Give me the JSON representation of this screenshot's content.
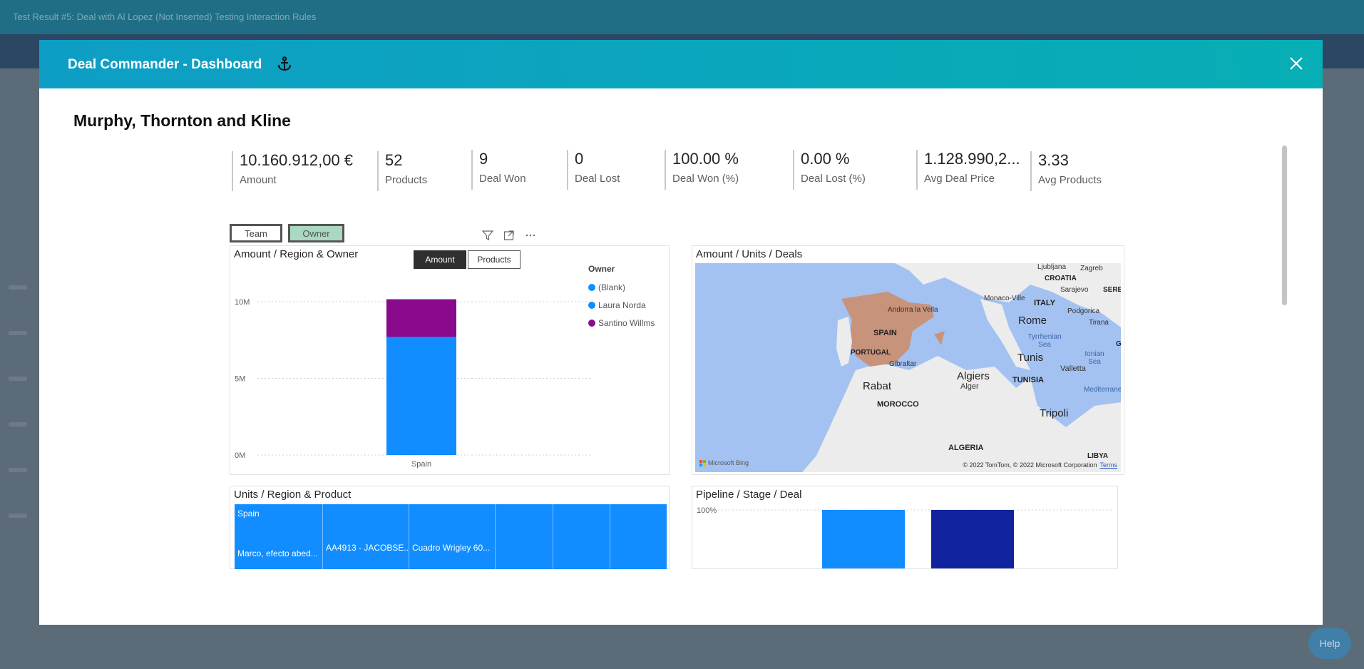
{
  "background": {
    "top_bar_text": "Test Result #5: Deal with Al Lopez (Not Inserted) Testing Interaction Rules",
    "help_label": "Help"
  },
  "modal": {
    "title": "Deal Commander - Dashboard",
    "company_name": "Murphy, Thornton and Kline"
  },
  "kpis": [
    {
      "value": "10.160.912,00 €",
      "label": "Amount"
    },
    {
      "value": "52",
      "label": "Products"
    },
    {
      "value": "9",
      "label": "Deal Won"
    },
    {
      "value": "0",
      "label": "Deal Lost"
    },
    {
      "value": "100.00 %",
      "label": "Deal Won (%)"
    },
    {
      "value": "0.00 %",
      "label": "Deal Lost (%)"
    },
    {
      "value": "1.128.990,2...",
      "label": "Avg Deal Price"
    },
    {
      "value": "3.33",
      "label": "Avg Products"
    }
  ],
  "toggles": {
    "team": "Team",
    "owner": "Owner",
    "active": "Owner"
  },
  "amount_chart": {
    "title": "Amount / Region & Owner",
    "seg_amount": "Amount",
    "seg_products": "Products",
    "legend_title": "Owner",
    "legend": [
      {
        "name": "(Blank)",
        "color": "#118dff"
      },
      {
        "name": "Laura Norda",
        "color": "#118dff"
      },
      {
        "name": "Santino Willms",
        "color": "#8a0a8e"
      }
    ],
    "y_ticks": [
      "10M",
      "5M",
      "0M"
    ],
    "x_category": "Spain"
  },
  "chart_data": [
    {
      "type": "bar",
      "title": "Amount / Region & Owner",
      "categories": [
        "Spain"
      ],
      "series": [
        {
          "name": "Laura Norda",
          "values": [
            7700000
          ]
        },
        {
          "name": "Santino Willms",
          "values": [
            2460000
          ]
        }
      ],
      "ylim": [
        0,
        10000000
      ],
      "legend": "right"
    },
    {
      "type": "bar",
      "title": "Pipeline / Stage / Deal",
      "categories": [
        "",
        ""
      ],
      "series": [
        {
          "name": "",
          "values": [
            100,
            100
          ]
        }
      ],
      "ylim": [
        0,
        100
      ]
    }
  ],
  "map_panel": {
    "title": "Amount / Units / Deals",
    "labels": {
      "spain": "SPAIN",
      "portugal": "PORTUGAL",
      "gibraltar": "Gibraltar",
      "andorra": "Andorra la Vella",
      "monaco": "Monaco-Ville",
      "italy": "ITALY",
      "rome": "Rome",
      "croatia": "CROATIA",
      "zagreb": "Zagreb",
      "ljubljana": "Ljubljana",
      "sarajevo": "Sarajevo",
      "serbia": "SERBI",
      "podgorica": "Podgorica",
      "tirana": "Tirana",
      "tyrrhenian": "Tyrrhenian Sea",
      "ionian": "Ionian Sea",
      "mediterranean": "Mediterranea",
      "rabat": "Rabat",
      "morocco": "MOROCCO",
      "algiers": "Algiers",
      "alger": "Alger",
      "tunis": "Tunis",
      "tunisia": "TUNISIA",
      "valletta": "Valletta",
      "tripoli": "Tripoli",
      "algeria": "ALGERIA",
      "libya": "LIBYA",
      "gr": "GR"
    },
    "copyright": "© 2022 TomTom, © 2022 Microsoft Corporation",
    "terms": "Terms",
    "bing": "Microsoft Bing"
  },
  "units_panel": {
    "title": "Units / Region & Product",
    "region": "Spain",
    "cells": [
      "Marco, efecto abed...",
      "AA4913 - JACOBSE...",
      "Cuadro Wrigley 60..."
    ]
  },
  "pipeline_panel": {
    "title": "Pipeline / Stage / Deal",
    "y_tick": "100%",
    "colors": [
      "#118dff",
      "#12239e"
    ]
  }
}
